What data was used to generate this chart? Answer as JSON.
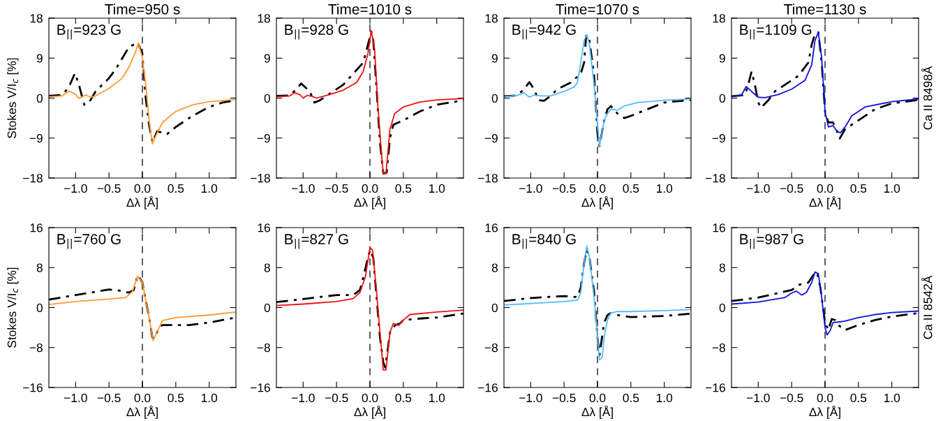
{
  "chart_data": [
    {
      "type": "line",
      "title": "Time=950 s",
      "ylabel": "Stokes V/I$_{c}$ [%]",
      "xlabel": "Δλ [Å]",
      "annotations": [
        "B$_{||}$=923 G"
      ],
      "xlim": [
        -1.4,
        1.4
      ],
      "xticks": [
        {
          "value": -1.0,
          "label": "−1.0"
        },
        {
          "value": -0.5,
          "label": "−0.5"
        },
        {
          "value": 0.0,
          "label": "0.0"
        },
        {
          "value": 0.5,
          "label": "0.5"
        },
        {
          "value": 1.0,
          "label": "1.0"
        }
      ],
      "ylim": [
        -18,
        18
      ],
      "yticks": [
        {
          "value": -18,
          "label": "−18"
        },
        {
          "value": -9,
          "label": "−9"
        },
        0,
        9,
        18
      ],
      "grid": false,
      "ref_lines": [
        {
          "axis": "x",
          "value": 0,
          "color": "#000000",
          "line_style": "dashed"
        }
      ],
      "series": [
        {
          "color": "#000000",
          "line_style": "dashdot",
          "x": [
            -1.4,
            -1.2,
            -1.1,
            -1.01,
            -0.95,
            -0.87,
            -0.8,
            -0.7,
            -0.5,
            -0.4,
            -0.3,
            -0.2,
            -0.07,
            0.0,
            0.05,
            0.1,
            0.15,
            0.22,
            0.3,
            0.37,
            0.5,
            0.75,
            1.0,
            1.2,
            1.4
          ],
          "values": [
            0.5,
            0.7,
            2.5,
            5.6,
            3,
            -1.5,
            -1,
            1.5,
            4.5,
            6.5,
            9,
            11.5,
            12.5,
            10,
            0,
            -6,
            -10,
            -7.5,
            -7.8,
            -8.1,
            -6.5,
            -4,
            -2,
            -1,
            -0.5
          ]
        },
        {
          "color": "#ff9933",
          "line_style": "solid",
          "x": [
            -1.4,
            -1.2,
            -1.1,
            -1.0,
            -0.95,
            -0.85,
            -0.77,
            -0.7,
            -0.5,
            -0.3,
            -0.2,
            -0.1,
            -0.06,
            0.0,
            0.05,
            0.1,
            0.15,
            0.2,
            0.3,
            0.5,
            0.75,
            1.0,
            1.4
          ],
          "values": [
            0.3,
            0.5,
            1.6,
            0.8,
            -0.1,
            0.7,
            0.2,
            0.5,
            2.2,
            4.5,
            7,
            10.5,
            12.4,
            9,
            3,
            -5,
            -10.3,
            -8.5,
            -5.5,
            -3,
            -1.5,
            -0.8,
            -0.3
          ]
        }
      ]
    },
    {
      "type": "line",
      "title": "Time=1010 s",
      "xlabel": "Δλ [Å]",
      "annotations": [
        "B$_{||}$=928 G"
      ],
      "xlim": [
        -1.4,
        1.4
      ],
      "xticks": [
        {
          "value": -1.0,
          "label": "−1.0"
        },
        {
          "value": -0.5,
          "label": "−0.5"
        },
        {
          "value": 0.0,
          "label": "0.0"
        },
        {
          "value": 0.5,
          "label": "0.5"
        },
        {
          "value": 1.0,
          "label": "1.0"
        }
      ],
      "ylim": [
        -18,
        18
      ],
      "yticks": [
        {
          "value": -18,
          "label": "−18"
        },
        {
          "value": -9,
          "label": "−9"
        },
        0,
        9,
        18
      ],
      "grid": false,
      "ref_lines": [
        {
          "axis": "x",
          "value": 0,
          "color": "#000000",
          "line_style": "dashed"
        }
      ],
      "series": [
        {
          "color": "#000000",
          "line_style": "dashdot",
          "x": [
            -1.4,
            -1.2,
            -1.1,
            -1.03,
            -0.9,
            -0.83,
            -0.75,
            -0.6,
            -0.4,
            -0.25,
            -0.1,
            -0.03,
            0.02,
            0.05,
            0.1,
            0.15,
            0.2,
            0.25,
            0.3,
            0.35,
            0.5,
            0.75,
            1.0,
            1.4
          ],
          "values": [
            0.5,
            0.6,
            2,
            3.3,
            1.5,
            -1,
            -0.5,
            1,
            3,
            5.5,
            8,
            12,
            15,
            13,
            2,
            -10,
            -17,
            -16.8,
            -9,
            -6,
            -5,
            -3,
            -1.5,
            -0.5
          ]
        },
        {
          "color": "#ee1111",
          "line_style": "solid",
          "x": [
            -1.4,
            -1.2,
            -1.13,
            -1.05,
            -1.0,
            -0.94,
            -0.87,
            -0.8,
            -0.6,
            -0.4,
            -0.2,
            -0.1,
            -0.03,
            0.02,
            0.07,
            0.12,
            0.17,
            0.2,
            0.24,
            0.3,
            0.37,
            0.5,
            0.75,
            1.0,
            1.4
          ],
          "values": [
            0.3,
            0.5,
            1.2,
            0.8,
            0,
            0.6,
            0.4,
            0,
            0.8,
            1.8,
            3.5,
            6,
            10,
            15.2,
            11,
            -2,
            -12,
            -17,
            -17,
            -7,
            -3.5,
            -2,
            -0.9,
            -0.4,
            -0.1
          ]
        }
      ]
    },
    {
      "type": "line",
      "title": "Time=1070 s",
      "xlabel": "Δλ [Å]",
      "annotations": [
        "B$_{||}$=942 G"
      ],
      "xlim": [
        -1.4,
        1.4
      ],
      "xticks": [
        {
          "value": -1.0,
          "label": "−1.0"
        },
        {
          "value": -0.5,
          "label": "−0.5"
        },
        {
          "value": 0.0,
          "label": "0.0"
        },
        {
          "value": 0.5,
          "label": "0.5"
        },
        {
          "value": 1.0,
          "label": "1.0"
        }
      ],
      "ylim": [
        -18,
        18
      ],
      "yticks": [
        {
          "value": -18,
          "label": "−18"
        },
        {
          "value": -9,
          "label": "−9"
        },
        0,
        9,
        18
      ],
      "grid": false,
      "ref_lines": [
        {
          "axis": "x",
          "value": 0,
          "color": "#000000",
          "line_style": "dashed"
        }
      ],
      "series": [
        {
          "color": "#000000",
          "line_style": "dashdot",
          "x": [
            -1.4,
            -1.2,
            -1.1,
            -1.02,
            -0.95,
            -0.88,
            -0.8,
            -0.7,
            -0.6,
            -0.4,
            -0.25,
            -0.2,
            -0.17,
            -0.13,
            -0.05,
            0.0,
            0.03,
            0.1,
            0.15,
            0.2,
            0.3,
            0.4,
            0.5,
            0.75,
            1.0,
            1.4
          ],
          "values": [
            0.4,
            0.6,
            2,
            3.6,
            2,
            -0.5,
            -0.6,
            0.5,
            2,
            3.5,
            5.5,
            8,
            14,
            14,
            5,
            -8,
            -10.8,
            -5,
            -2.5,
            -1.8,
            -3.5,
            -4.5,
            -4,
            -2.5,
            -1,
            -0.4
          ]
        },
        {
          "color": "#55bbff",
          "line_style": "solid",
          "x": [
            -1.4,
            -1.2,
            -1.1,
            -1.02,
            -0.95,
            -0.85,
            -0.7,
            -0.5,
            -0.35,
            -0.3,
            -0.25,
            -0.2,
            -0.16,
            -0.12,
            -0.05,
            0.0,
            0.03,
            0.1,
            0.15,
            0.2,
            0.3,
            0.4,
            0.6,
            1.0,
            1.4
          ],
          "values": [
            0.3,
            0.6,
            1.2,
            0.2,
            0.7,
            0.5,
            0.5,
            1.5,
            2.5,
            3.5,
            8,
            13,
            14.3,
            12,
            3,
            -6,
            -10.8,
            -5,
            -3.5,
            -2.5,
            -2.7,
            -1.8,
            -1,
            -0.5,
            -0.2
          ]
        }
      ]
    },
    {
      "type": "line",
      "title": "Time=1130 s",
      "xlabel": "Δλ [Å]",
      "y2label": "Ca II 8498Å",
      "annotations": [
        "B$_{||}$=1109 G"
      ],
      "xlim": [
        -1.4,
        1.4
      ],
      "xticks": [
        {
          "value": -1.0,
          "label": "−1.0"
        },
        {
          "value": -0.5,
          "label": "−0.5"
        },
        {
          "value": 0.0,
          "label": "0.0"
        },
        {
          "value": 0.5,
          "label": "0.5"
        },
        {
          "value": 1.0,
          "label": "1.0"
        }
      ],
      "ylim": [
        -18,
        18
      ],
      "yticks": [
        {
          "value": -18,
          "label": "−18"
        },
        {
          "value": -9,
          "label": "−9"
        },
        0,
        9,
        18
      ],
      "grid": false,
      "ref_lines": [
        {
          "axis": "x",
          "value": 0,
          "color": "#000000",
          "line_style": "dashed"
        }
      ],
      "series": [
        {
          "color": "#000000",
          "line_style": "dashdot",
          "x": [
            -1.4,
            -1.2,
            -1.15,
            -1.1,
            -1.05,
            -1.0,
            -0.96,
            -0.85,
            -0.75,
            -0.6,
            -0.4,
            -0.25,
            -0.2,
            -0.15,
            -0.1,
            -0.05,
            0.0,
            0.05,
            0.12,
            0.18,
            0.22,
            0.3,
            0.5,
            0.75,
            1.0,
            1.4
          ],
          "values": [
            0.4,
            0.7,
            3,
            6,
            3,
            -1,
            -2.2,
            -0.5,
            1.5,
            3,
            5,
            8,
            12,
            14.5,
            14.8,
            8,
            -3,
            -5.5,
            -5.5,
            -7.5,
            -9.1,
            -7,
            -5,
            -2.5,
            -1.2,
            -0.4
          ]
        },
        {
          "color": "#1111dd",
          "line_style": "solid",
          "x": [
            -1.4,
            -1.25,
            -1.18,
            -1.1,
            -1.0,
            -0.9,
            -0.7,
            -0.5,
            -0.3,
            -0.2,
            -0.15,
            -0.1,
            -0.05,
            0.0,
            0.05,
            0.12,
            0.18,
            0.23,
            0.3,
            0.4,
            0.6,
            1.0,
            1.4
          ],
          "values": [
            0.3,
            0.7,
            2.6,
            1.5,
            0.2,
            0.1,
            0.8,
            2,
            4,
            7.5,
            13,
            14.8,
            9,
            -3,
            -6.5,
            -6.2,
            -7.5,
            -7.8,
            -6.5,
            -4,
            -2,
            -0.8,
            -0.2
          ]
        }
      ]
    },
    {
      "type": "line",
      "ylabel": "Stokes V/I$_{c}$ [%]",
      "xlabel": "Δλ [Å]",
      "annotations": [
        "B$_{||}$=760 G"
      ],
      "xlim": [
        -1.4,
        1.4
      ],
      "xticks": [
        {
          "value": -1.0,
          "label": "−1.0"
        },
        {
          "value": -0.5,
          "label": "−0.5"
        },
        {
          "value": 0.0,
          "label": "0.0"
        },
        {
          "value": 0.5,
          "label": "0.5"
        },
        {
          "value": 1.0,
          "label": "1.0"
        }
      ],
      "ylim": [
        -16,
        16
      ],
      "yticks": [
        {
          "value": -16,
          "label": "−16"
        },
        {
          "value": -8,
          "label": "−8"
        },
        0,
        8,
        16
      ],
      "grid": false,
      "ref_lines": [
        {
          "axis": "x",
          "value": 0,
          "color": "#000000",
          "line_style": "dashed"
        }
      ],
      "series": [
        {
          "color": "#000000",
          "line_style": "dashdot",
          "x": [
            -1.4,
            -1.0,
            -0.5,
            -0.35,
            -0.2,
            -0.13,
            -0.07,
            0.0,
            0.1,
            0.15,
            0.18,
            0.25,
            0.3,
            0.5,
            0.7,
            1.0,
            1.4
          ],
          "values": [
            1.6,
            2.5,
            3.6,
            3.4,
            3,
            3.5,
            6.5,
            5,
            -2,
            -6,
            -6.2,
            -4,
            -3.5,
            -3.5,
            -3.5,
            -3,
            -2
          ]
        },
        {
          "color": "#ff9933",
          "line_style": "solid",
          "x": [
            -1.4,
            -1.0,
            -0.5,
            -0.25,
            -0.15,
            -0.07,
            0.0,
            0.1,
            0.16,
            0.2,
            0.3,
            0.5,
            1.0,
            1.4
          ],
          "values": [
            0.6,
            1.2,
            1.7,
            2,
            3.2,
            6.3,
            5,
            -2,
            -6.6,
            -5.5,
            -2.6,
            -2,
            -1.5,
            -0.9
          ]
        }
      ]
    },
    {
      "type": "line",
      "xlabel": "Δλ [Å]",
      "annotations": [
        "B$_{||}$=827 G"
      ],
      "xlim": [
        -1.4,
        1.4
      ],
      "xticks": [
        {
          "value": -1.0,
          "label": "−1.0"
        },
        {
          "value": -0.5,
          "label": "−0.5"
        },
        {
          "value": 0.0,
          "label": "0.0"
        },
        {
          "value": 0.5,
          "label": "0.5"
        },
        {
          "value": 1.0,
          "label": "1.0"
        }
      ],
      "ylim": [
        -16,
        16
      ],
      "yticks": [
        {
          "value": -16,
          "label": "−16"
        },
        {
          "value": -8,
          "label": "−8"
        },
        0,
        8,
        16
      ],
      "grid": false,
      "ref_lines": [
        {
          "axis": "x",
          "value": 0,
          "color": "#000000",
          "line_style": "dashed"
        }
      ],
      "series": [
        {
          "color": "#000000",
          "line_style": "dashdot",
          "x": [
            -1.4,
            -1.0,
            -0.5,
            -0.25,
            -0.15,
            -0.1,
            -0.03,
            0.0,
            0.05,
            0.1,
            0.15,
            0.2,
            0.23,
            0.3,
            0.38,
            0.45,
            0.5,
            0.75,
            1.0,
            1.4
          ],
          "values": [
            1.1,
            1.7,
            2.5,
            2.5,
            3.5,
            6,
            10,
            11.5,
            10,
            2,
            -6,
            -11,
            -12,
            -5,
            -3.5,
            -3.2,
            -2.5,
            -2.2,
            -2,
            -1.2
          ]
        },
        {
          "color": "#ee1111",
          "line_style": "solid",
          "x": [
            -1.4,
            -1.0,
            -0.5,
            -0.25,
            -0.15,
            -0.07,
            0.0,
            0.04,
            0.1,
            0.15,
            0.2,
            0.24,
            0.3,
            0.35,
            0.43,
            0.5,
            0.6,
            1.0,
            1.4
          ],
          "values": [
            0.4,
            0.7,
            1.2,
            1.8,
            3,
            6,
            12,
            11.5,
            3,
            -5,
            -12.5,
            -12.5,
            -5,
            -3.2,
            -3.6,
            -2.5,
            -1.4,
            -0.9,
            -0.5
          ]
        }
      ]
    },
    {
      "type": "line",
      "xlabel": "Δλ [Å]",
      "annotations": [
        "B$_{||}$=840 G"
      ],
      "xlim": [
        -1.4,
        1.4
      ],
      "xticks": [
        {
          "value": -1.0,
          "label": "−1.0"
        },
        {
          "value": -0.5,
          "label": "−0.5"
        },
        {
          "value": 0.0,
          "label": "0.0"
        },
        {
          "value": 0.5,
          "label": "0.5"
        },
        {
          "value": 1.0,
          "label": "1.0"
        }
      ],
      "ylim": [
        -16,
        16
      ],
      "yticks": [
        {
          "value": -16,
          "label": "−16"
        },
        {
          "value": -8,
          "label": "−8"
        },
        0,
        8,
        16
      ],
      "grid": false,
      "ref_lines": [
        {
          "axis": "x",
          "value": 0,
          "color": "#000000",
          "line_style": "dashed"
        }
      ],
      "series": [
        {
          "color": "#000000",
          "line_style": "dashdot",
          "x": [
            -1.4,
            -1.0,
            -0.5,
            -0.3,
            -0.25,
            -0.2,
            -0.16,
            -0.12,
            -0.05,
            0.0,
            0.03,
            0.1,
            0.15,
            0.2,
            0.3,
            0.5,
            1.0,
            1.4
          ],
          "values": [
            1.3,
            1.9,
            2.3,
            2.1,
            4,
            9,
            11.5,
            10,
            3,
            -6,
            -9.5,
            -3,
            -1.5,
            -1.1,
            -1.5,
            -1.9,
            -1.7,
            -1.2
          ]
        },
        {
          "color": "#55bbff",
          "line_style": "solid",
          "x": [
            -1.4,
            -1.0,
            -0.5,
            -0.3,
            -0.25,
            -0.2,
            -0.16,
            -0.12,
            -0.05,
            0.0,
            0.03,
            0.07,
            0.1,
            0.15,
            0.2,
            0.3,
            0.5,
            1.0,
            1.4
          ],
          "values": [
            0.5,
            0.8,
            1.2,
            1.5,
            3,
            9,
            12.3,
            10,
            2,
            -6,
            -10.5,
            -10,
            -6,
            -2.5,
            -1.1,
            -0.8,
            -0.8,
            -0.6,
            -0.4
          ]
        }
      ]
    },
    {
      "type": "line",
      "xlabel": "Δλ [Å]",
      "y2label": "Ca II 8542Å",
      "annotations": [
        "B$_{||}$=987 G"
      ],
      "xlim": [
        -1.4,
        1.4
      ],
      "xticks": [
        {
          "value": -1.0,
          "label": "−1.0"
        },
        {
          "value": -0.5,
          "label": "−0.5"
        },
        {
          "value": 0.0,
          "label": "0.0"
        },
        {
          "value": 0.5,
          "label": "0.5"
        },
        {
          "value": 1.0,
          "label": "1.0"
        }
      ],
      "ylim": [
        -16,
        16
      ],
      "yticks": [
        {
          "value": -16,
          "label": "−16"
        },
        {
          "value": -8,
          "label": "−8"
        },
        0,
        8,
        16
      ],
      "grid": false,
      "ref_lines": [
        {
          "axis": "x",
          "value": 0,
          "color": "#000000",
          "line_style": "dashed"
        }
      ],
      "series": [
        {
          "color": "#000000",
          "line_style": "dashdot",
          "x": [
            -1.4,
            -1.0,
            -0.5,
            -0.4,
            -0.25,
            -0.15,
            -0.12,
            -0.07,
            0.0,
            0.05,
            0.1,
            0.15,
            0.2,
            0.3,
            0.5,
            0.75,
            1.0,
            1.4
          ],
          "values": [
            1.3,
            2,
            3.5,
            4.5,
            5,
            7,
            7.1,
            4,
            -3,
            -4.5,
            -2.3,
            -2.5,
            -3.5,
            -4.5,
            -3.5,
            -2.5,
            -1.8,
            -1.1
          ]
        },
        {
          "color": "#1111dd",
          "line_style": "solid",
          "x": [
            -1.4,
            -1.0,
            -0.6,
            -0.5,
            -0.43,
            -0.35,
            -0.28,
            -0.2,
            -0.15,
            -0.1,
            -0.05,
            0.0,
            0.03,
            0.08,
            0.12,
            0.2,
            0.3,
            0.5,
            0.75,
            1.0,
            1.4
          ],
          "values": [
            0.7,
            1.1,
            2,
            2.9,
            3.3,
            2.5,
            3,
            5,
            7.1,
            6.8,
            2,
            -4,
            -5.5,
            -4.5,
            -3,
            -2.9,
            -2.7,
            -2,
            -1.4,
            -1,
            -0.7
          ]
        }
      ]
    }
  ]
}
